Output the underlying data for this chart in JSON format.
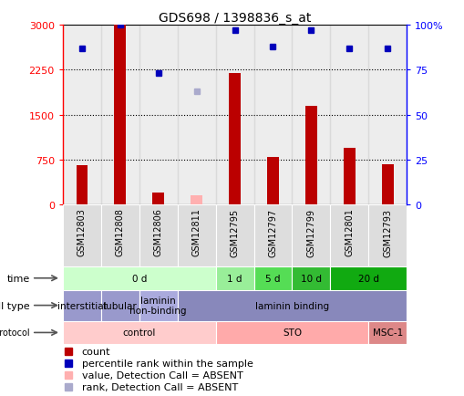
{
  "title": "GDS698 / 1398836_s_at",
  "samples": [
    "GSM12803",
    "GSM12808",
    "GSM12806",
    "GSM12811",
    "GSM12795",
    "GSM12797",
    "GSM12799",
    "GSM12801",
    "GSM12793"
  ],
  "count_values": [
    650,
    3000,
    200,
    150,
    2200,
    800,
    1650,
    950,
    680
  ],
  "count_absent": [
    false,
    false,
    false,
    true,
    false,
    false,
    false,
    false,
    false
  ],
  "percentile_values": [
    87,
    100,
    73,
    63,
    97,
    88,
    97,
    87,
    87
  ],
  "percentile_absent": [
    false,
    false,
    false,
    true,
    false,
    false,
    false,
    false,
    false
  ],
  "ylim_left": [
    0,
    3000
  ],
  "ylim_right": [
    0,
    100
  ],
  "yticks_left": [
    0,
    750,
    1500,
    2250,
    3000
  ],
  "yticks_right": [
    0,
    25,
    50,
    75,
    100
  ],
  "count_color": "#BB0000",
  "count_absent_color": "#FFB0B0",
  "percentile_color": "#0000BB",
  "percentile_absent_color": "#AAAACC",
  "time_cells": [
    {
      "text": "0 d",
      "span": [
        0,
        4
      ],
      "color": "#CCFFCC"
    },
    {
      "text": "1 d",
      "span": [
        4,
        5
      ],
      "color": "#99EE99"
    },
    {
      "text": "5 d",
      "span": [
        5,
        6
      ],
      "color": "#55DD55"
    },
    {
      "text": "10 d",
      "span": [
        6,
        7
      ],
      "color": "#33BB33"
    },
    {
      "text": "20 d",
      "span": [
        7,
        9
      ],
      "color": "#11AA11"
    }
  ],
  "celltype_cells": [
    {
      "text": "interstitial",
      "span": [
        0,
        1
      ],
      "color": "#9999CC"
    },
    {
      "text": "tubular",
      "span": [
        1,
        2
      ],
      "color": "#9999CC"
    },
    {
      "text": "laminin\nnon-binding",
      "span": [
        2,
        3
      ],
      "color": "#AAAADD"
    },
    {
      "text": "laminin binding",
      "span": [
        3,
        9
      ],
      "color": "#8888BB"
    }
  ],
  "growth_cells": [
    {
      "text": "control",
      "span": [
        0,
        4
      ],
      "color": "#FFCCCC"
    },
    {
      "text": "STO",
      "span": [
        4,
        8
      ],
      "color": "#FFAAAA"
    },
    {
      "text": "MSC-1",
      "span": [
        8,
        9
      ],
      "color": "#DD8888"
    }
  ],
  "legend_items": [
    {
      "color": "#BB0000",
      "label": "count"
    },
    {
      "color": "#0000BB",
      "label": "percentile rank within the sample"
    },
    {
      "color": "#FFB0B0",
      "label": "value, Detection Call = ABSENT"
    },
    {
      "color": "#AAAACC",
      "label": "rank, Detection Call = ABSENT"
    }
  ],
  "bar_width": 0.3,
  "sample_bg_color": "#CCCCCC",
  "label_bg_color": "#DDDDDD"
}
